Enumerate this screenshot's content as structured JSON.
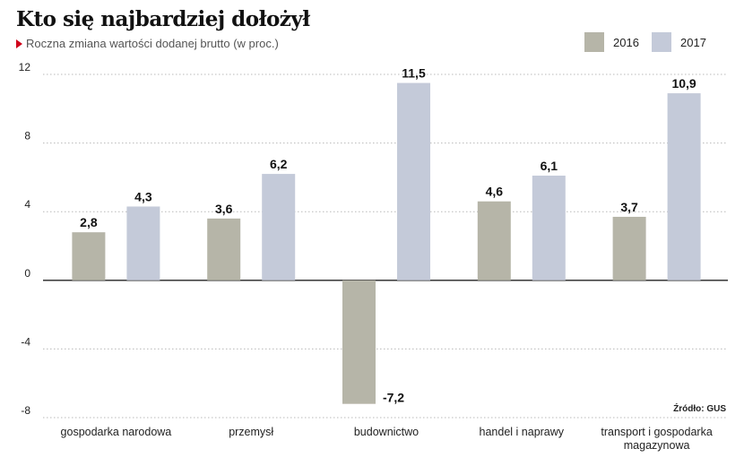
{
  "colors": {
    "s2016": "#b6b5a8",
    "s2017": "#c4cad9",
    "grid": "#b9b9b9",
    "accent": "#d0021b"
  },
  "chart_data": {
    "type": "bar",
    "title": "Kto się najbardziej dołożył",
    "subtitle": "Roczna zmiana wartości dodanej brutto (w proc.)",
    "source": "Źródło: GUS",
    "categories": [
      [
        "gospodarka narodowa"
      ],
      [
        "przemysł"
      ],
      [
        "budownictwo"
      ],
      [
        "handel i naprawy"
      ],
      [
        "transport i gospodarka",
        "magazynowa"
      ]
    ],
    "series": [
      {
        "name": "2016",
        "values": [
          2.8,
          3.6,
          -7.2,
          4.6,
          3.7
        ],
        "labels": [
          "2,8",
          "3,6",
          "-7,2",
          "4,6",
          "3,7"
        ]
      },
      {
        "name": "2017",
        "values": [
          4.3,
          6.2,
          11.5,
          6.1,
          10.9
        ],
        "labels": [
          "4,3",
          "6,2",
          "11,5",
          "6,1",
          "10,9"
        ]
      }
    ],
    "yticks": [
      12,
      8,
      4,
      0,
      -4,
      -8
    ],
    "ytick_labels": [
      "12",
      "8",
      "4",
      "0",
      "-4",
      "-8"
    ],
    "ylim": [
      -8,
      12
    ],
    "grid": true,
    "legend": "top-right",
    "xlabel": "",
    "ylabel": ""
  }
}
